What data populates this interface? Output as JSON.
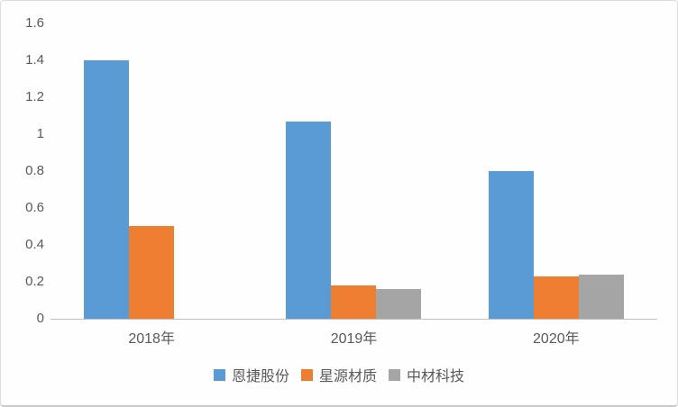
{
  "chart_data": {
    "type": "bar",
    "title": "",
    "xlabel": "",
    "ylabel": "",
    "categories": [
      "2018年",
      "2019年",
      "2020年"
    ],
    "series": [
      {
        "name": "恩捷股份",
        "color": "#5B9BD5",
        "values": [
          1.4,
          1.07,
          0.8
        ]
      },
      {
        "name": "星源材质",
        "color": "#ED7D31",
        "values": [
          0.5,
          0.18,
          0.23
        ]
      },
      {
        "name": "中材科技",
        "color": "#A5A5A5",
        "values": [
          0,
          0.16,
          0.24
        ]
      }
    ],
    "ylim": [
      0,
      1.6
    ],
    "yticks": [
      {
        "value": 0,
        "label": "0"
      },
      {
        "value": 0.2,
        "label": "0.2"
      },
      {
        "value": 0.4,
        "label": "0.4"
      },
      {
        "value": 0.6,
        "label": "0.6"
      },
      {
        "value": 0.8,
        "label": "0.8"
      },
      {
        "value": 1,
        "label": "1"
      },
      {
        "value": 1.2,
        "label": "1.2"
      },
      {
        "value": 1.4,
        "label": "1.4"
      },
      {
        "value": 1.6,
        "label": "1.6"
      }
    ],
    "grid": false,
    "legend_position": "bottom"
  },
  "colors": {
    "axis_line": "#bfbfbf",
    "text": "#595959",
    "card_border": "#dcdcdc",
    "background": "#fefefe"
  }
}
